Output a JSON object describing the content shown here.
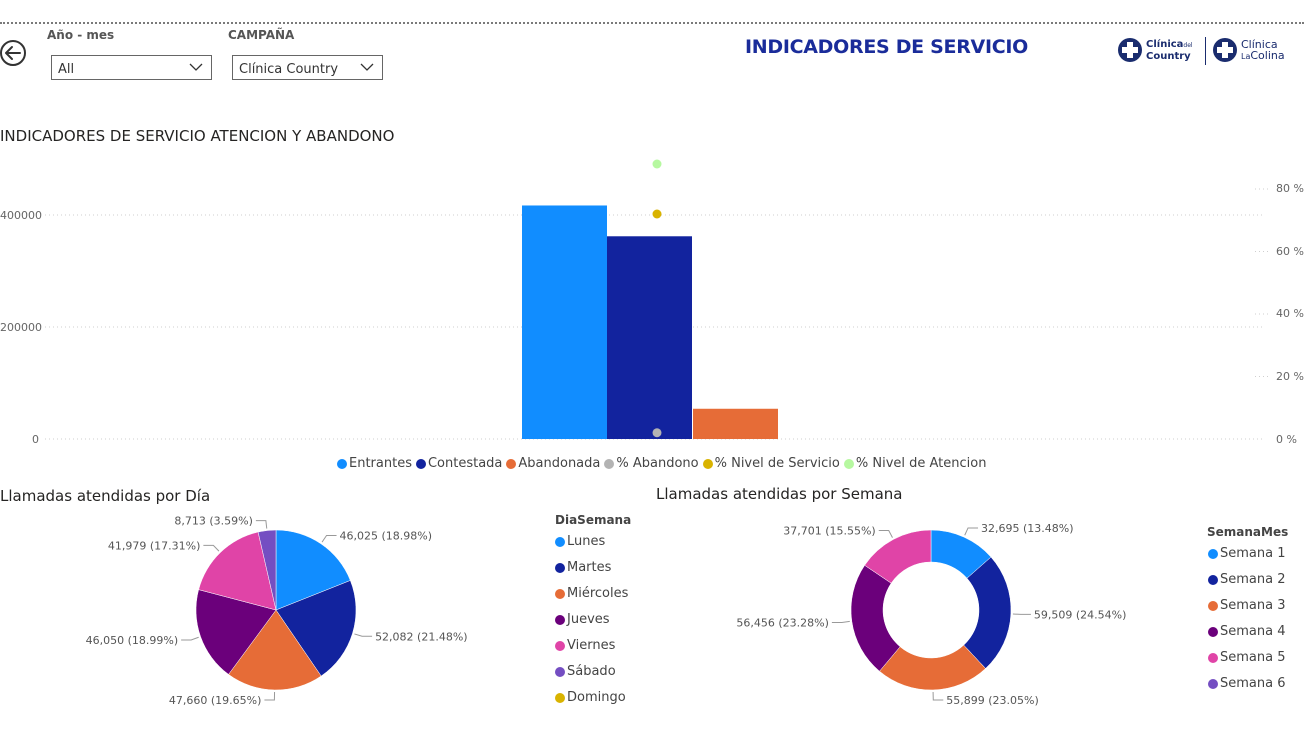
{
  "filters": {
    "anio_mes_label": "Año - mes",
    "anio_mes_value": "All",
    "campana_label": "CAMPAÑA",
    "campana_value": "Clínica Country"
  },
  "header": {
    "title": "INDICADORES DE SERVICIO"
  },
  "logos": {
    "country": {
      "line1": "Clínica",
      "line1_suffix": "del",
      "line2": "Country"
    },
    "colina": {
      "line1": "Clínica",
      "line2_a": "La",
      "line2_b": "Colina"
    }
  },
  "colors": {
    "entrantes": "#118DFF",
    "contestada": "#12239E",
    "abandonada": "#E66C37",
    "abandono": "#B3B3B3",
    "nivel_servicio": "#D9B300",
    "nivel_atencion": "#B6F8A0",
    "jueves": "#6B007B",
    "viernes": "#E044A7",
    "sabado": "#744EC2"
  },
  "chart_data": [
    {
      "type": "bar",
      "title": "INDICADORES DE SERVICIO ATENCION Y ABANDONO",
      "y_left_ticks": [
        "0",
        "200000",
        "400000"
      ],
      "y_left_range": [
        0,
        500000
      ],
      "y_right_ticks": [
        "0 %",
        "20 %",
        "40 %",
        "60 %",
        "80 %"
      ],
      "y_right_range": [
        0,
        0.8
      ],
      "grid": true,
      "legend_position": "bottom",
      "series": [
        {
          "name": "Entrantes",
          "value": 417000,
          "axis": "left",
          "color": "#118DFF"
        },
        {
          "name": "Contestada",
          "value": 362000,
          "axis": "left",
          "color": "#12239E"
        },
        {
          "name": "Abandonada",
          "value": 54000,
          "axis": "left",
          "color": "#E66C37"
        },
        {
          "name": "% Abandono",
          "value": 0.02,
          "axis": "right",
          "color": "#B3B3B3"
        },
        {
          "name": "% Nivel de Servicio",
          "value": 0.72,
          "axis": "right",
          "color": "#D9B300"
        },
        {
          "name": "% Nivel de Atencion",
          "value": 0.88,
          "axis": "right",
          "color": "#B6F8A0"
        }
      ]
    },
    {
      "type": "pie",
      "title": "Llamadas atendidas por Día",
      "legend_title": "DiaSemana",
      "legend": [
        {
          "name": "Lunes",
          "color": "#118DFF"
        },
        {
          "name": "Martes",
          "color": "#12239E"
        },
        {
          "name": "Miércoles",
          "color": "#E66C37"
        },
        {
          "name": "Jueves",
          "color": "#6B007B"
        },
        {
          "name": "Viernes",
          "color": "#E044A7"
        },
        {
          "name": "Sábado",
          "color": "#744EC2"
        },
        {
          "name": "Domingo",
          "color": "#D9B300"
        }
      ],
      "slices": [
        {
          "name": "Lunes",
          "value": 46025,
          "label": "46,025 (18.98%)",
          "color": "#118DFF"
        },
        {
          "name": "Martes",
          "value": 52082,
          "label": "52,082 (21.48%)",
          "color": "#12239E"
        },
        {
          "name": "Miércoles",
          "value": 47660,
          "label": "47,660 (19.65%)",
          "color": "#E66C37"
        },
        {
          "name": "Jueves",
          "value": 46050,
          "label": "46,050 (18.99%)",
          "color": "#6B007B"
        },
        {
          "name": "Viernes",
          "value": 41979,
          "label": "41,979 (17.31%)",
          "color": "#E044A7"
        },
        {
          "name": "Sábado",
          "value": 8713,
          "label": "8,713 (3.59%)",
          "color": "#744EC2"
        }
      ]
    },
    {
      "type": "donut",
      "title": "Llamadas atendidas por Semana",
      "legend_title": "SemanaMes",
      "legend": [
        {
          "name": "Semana 1",
          "color": "#118DFF"
        },
        {
          "name": "Semana 2",
          "color": "#12239E"
        },
        {
          "name": "Semana 3",
          "color": "#E66C37"
        },
        {
          "name": "Semana 4",
          "color": "#6B007B"
        },
        {
          "name": "Semana 5",
          "color": "#E044A7"
        },
        {
          "name": "Semana 6",
          "color": "#744EC2"
        }
      ],
      "slices": [
        {
          "name": "Semana 1",
          "value": 32695,
          "label": "32,695 (13.48%)",
          "color": "#118DFF"
        },
        {
          "name": "Semana 2",
          "value": 59509,
          "label": "59,509 (24.54%)",
          "color": "#12239E"
        },
        {
          "name": "Semana 3",
          "value": 55899,
          "label": "55,899 (23.05%)",
          "color": "#E66C37"
        },
        {
          "name": "Semana 4",
          "value": 56456,
          "label": "56,456 (23.28%)",
          "color": "#6B007B"
        },
        {
          "name": "Semana 5",
          "value": 37701,
          "label": "37,701 (15.55%)",
          "color": "#E044A7"
        }
      ]
    }
  ]
}
